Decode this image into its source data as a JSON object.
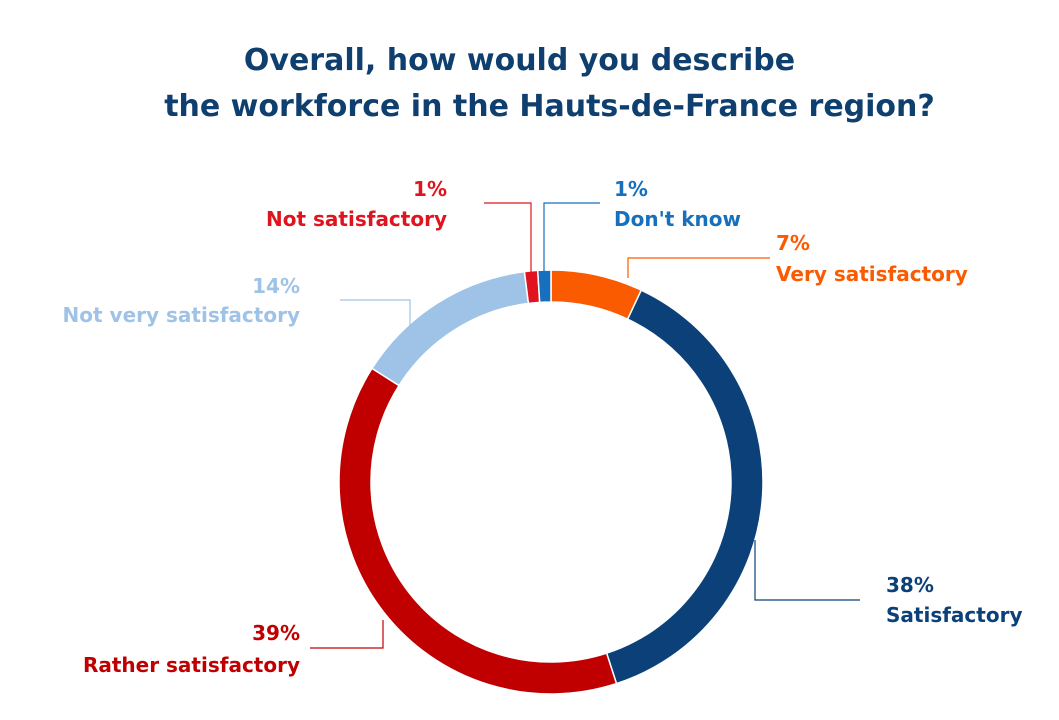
{
  "chart_data": {
    "type": "pie",
    "variant": "donut",
    "title": [
      "Overall, how would you describe",
      "the workforce in the Hauts-de-France region?"
    ],
    "slices": [
      {
        "label": "Very satisfactory",
        "value": 7,
        "value_label": "7%",
        "color": "#fa5a00"
      },
      {
        "label": "Satisfactory",
        "value": 38,
        "value_label": "38%",
        "color": "#0b4178"
      },
      {
        "label": "Rather satisfactory",
        "value": 39,
        "value_label": "39%",
        "color": "#c00000"
      },
      {
        "label": "Not very satisfactory",
        "value": 14,
        "value_label": "14%",
        "color": "#9fc3e7"
      },
      {
        "label": "Not satisfactory",
        "value": 1,
        "value_label": "1%",
        "color": "#e0141e"
      },
      {
        "label": "Don't know",
        "value": 1,
        "value_label": "1%",
        "color": "#1670bd"
      }
    ],
    "legend": "none",
    "label_style": "callouts with leader lines"
  }
}
